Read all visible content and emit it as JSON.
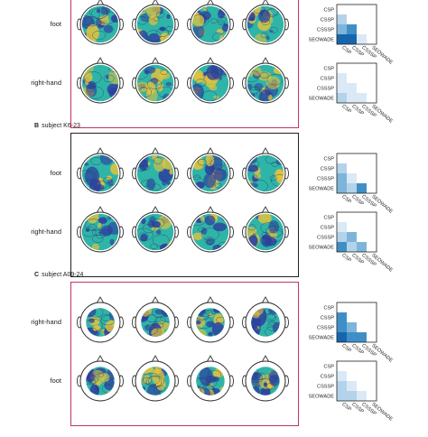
{
  "sections": [
    {
      "letter": "",
      "subject": "",
      "rows": [
        "foot",
        "right-hand"
      ]
    },
    {
      "letter": "B",
      "subject": "subject K6-23",
      "rows": [
        "foot",
        "right-hand"
      ]
    },
    {
      "letter": "C",
      "subject": "subject A09-24",
      "rows": [
        "right-hand",
        "foot"
      ]
    }
  ],
  "methods": [
    "CSP",
    "CSSP",
    "CSSSP",
    "SEOWADE"
  ],
  "matrices": [
    [
      [
        0,
        0,
        0,
        0
      ],
      [
        2,
        0,
        0,
        0
      ],
      [
        3,
        4,
        0,
        0
      ],
      [
        5,
        5,
        1,
        0
      ]
    ],
    [
      [
        0,
        0,
        0,
        0
      ],
      [
        1,
        0,
        0,
        0
      ],
      [
        1,
        1,
        0,
        0
      ],
      [
        2,
        1,
        1,
        0
      ]
    ],
    [
      [
        0,
        0,
        0,
        0
      ],
      [
        2,
        0,
        0,
        0
      ],
      [
        3,
        1,
        0,
        0
      ],
      [
        3,
        2,
        4,
        0
      ]
    ],
    [
      [
        0,
        0,
        0,
        0
      ],
      [
        1,
        0,
        0,
        0
      ],
      [
        2,
        3,
        0,
        0
      ],
      [
        4,
        2,
        3,
        0
      ]
    ],
    [
      [
        0,
        0,
        0,
        0
      ],
      [
        4,
        0,
        0,
        0
      ],
      [
        4,
        3,
        0,
        0
      ],
      [
        5,
        4,
        4,
        0
      ]
    ],
    [
      [
        0,
        0,
        0,
        0
      ],
      [
        1,
        0,
        0,
        0
      ],
      [
        2,
        1,
        0,
        0
      ],
      [
        2,
        2,
        1,
        0
      ]
    ]
  ],
  "colors": {
    "frame": "#c2335d",
    "map_bg": "#2fb4a8",
    "map_blue": "#2c3f9e",
    "map_yellow": "#e6c33a",
    "scale": [
      "#ffffff",
      "#dbe9f6",
      "#b3d3ea",
      "#7db5da",
      "#3f8fc6",
      "#1565ad"
    ]
  }
}
